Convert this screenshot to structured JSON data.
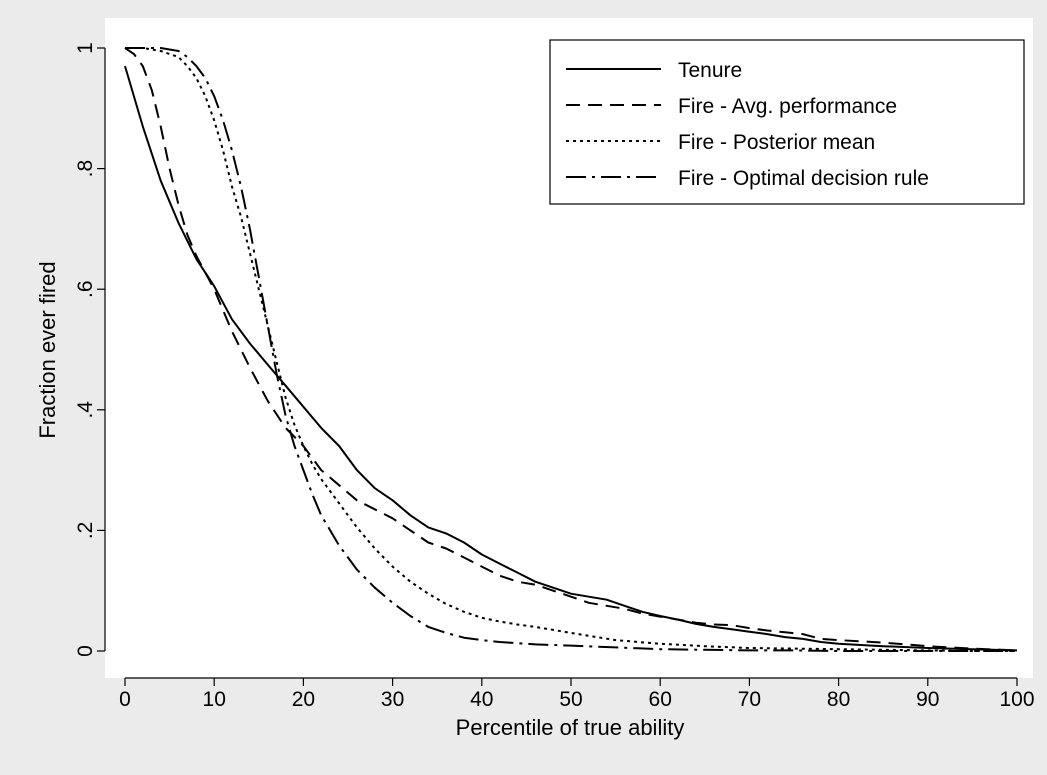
{
  "chart_data": {
    "type": "line",
    "title": "",
    "xlabel": "Percentile of true ability",
    "ylabel": "Fraction ever fired",
    "xlim": [
      0,
      100
    ],
    "ylim": [
      0,
      1
    ],
    "xticks": [
      0,
      10,
      20,
      30,
      40,
      50,
      60,
      70,
      80,
      90,
      100
    ],
    "xtick_labels": [
      "0",
      "10",
      "20",
      "30",
      "40",
      "50",
      "60",
      "70",
      "80",
      "90",
      "100"
    ],
    "yticks": [
      0,
      0.2,
      0.4,
      0.6,
      0.8,
      1
    ],
    "ytick_labels": [
      "0",
      ".2",
      ".4",
      ".6",
      ".8",
      "1"
    ],
    "grid": false,
    "legend_position": "top-right",
    "colors": {
      "page_background": "#ebebeb",
      "plot_background": "#ffffff",
      "line": "#000000"
    },
    "series": [
      {
        "name": "Tenure",
        "line_style": "solid",
        "x": [
          0,
          2,
          4,
          6,
          8,
          10,
          12,
          14,
          16,
          18,
          20,
          22,
          24,
          26,
          28,
          30,
          32,
          34,
          36,
          38,
          40,
          42,
          44,
          46,
          48,
          50,
          52,
          54,
          56,
          58,
          60,
          62,
          64,
          66,
          68,
          70,
          72,
          74,
          76,
          78,
          80,
          85,
          90,
          95,
          100
        ],
        "y": [
          0.97,
          0.87,
          0.78,
          0.71,
          0.65,
          0.605,
          0.55,
          0.51,
          0.475,
          0.44,
          0.405,
          0.37,
          0.34,
          0.3,
          0.27,
          0.25,
          0.225,
          0.205,
          0.195,
          0.18,
          0.16,
          0.145,
          0.13,
          0.115,
          0.105,
          0.095,
          0.09,
          0.085,
          0.075,
          0.065,
          0.058,
          0.052,
          0.045,
          0.04,
          0.036,
          0.032,
          0.028,
          0.023,
          0.02,
          0.015,
          0.012,
          0.008,
          0.005,
          0.003,
          0.001
        ]
      },
      {
        "name": "Fire - Avg. performance",
        "line_style": "dashed",
        "x": [
          0,
          1,
          2,
          3,
          4,
          5,
          6,
          7,
          8,
          10,
          12,
          14,
          16,
          18,
          20,
          22,
          24,
          26,
          28,
          30,
          32,
          34,
          36,
          38,
          40,
          42,
          44,
          46,
          48,
          50,
          52,
          54,
          56,
          58,
          60,
          62,
          64,
          66,
          68,
          70,
          72,
          74,
          76,
          78,
          80,
          85,
          90,
          95,
          100
        ],
        "y": [
          1.0,
          0.99,
          0.97,
          0.93,
          0.87,
          0.8,
          0.74,
          0.69,
          0.655,
          0.6,
          0.53,
          0.47,
          0.415,
          0.37,
          0.34,
          0.3,
          0.275,
          0.25,
          0.235,
          0.22,
          0.2,
          0.18,
          0.17,
          0.155,
          0.14,
          0.125,
          0.115,
          0.11,
          0.1,
          0.09,
          0.08,
          0.075,
          0.07,
          0.062,
          0.057,
          0.052,
          0.047,
          0.044,
          0.043,
          0.038,
          0.034,
          0.031,
          0.028,
          0.02,
          0.018,
          0.014,
          0.008,
          0.004,
          0.001
        ]
      },
      {
        "name": "Fire - Posterior mean",
        "line_style": "dotted",
        "x": [
          0,
          2,
          4,
          6,
          7,
          8,
          9,
          10,
          11,
          12,
          13,
          14,
          15,
          16,
          17,
          18,
          19,
          20,
          21,
          22,
          24,
          26,
          28,
          30,
          32,
          34,
          36,
          38,
          40,
          42,
          44,
          46,
          48,
          50,
          55,
          60,
          65,
          70,
          75,
          80,
          85,
          90,
          95,
          100
        ],
        "y": [
          1.0,
          1.0,
          0.995,
          0.985,
          0.97,
          0.95,
          0.92,
          0.88,
          0.83,
          0.77,
          0.72,
          0.66,
          0.6,
          0.54,
          0.48,
          0.42,
          0.375,
          0.34,
          0.31,
          0.285,
          0.245,
          0.205,
          0.17,
          0.14,
          0.115,
          0.095,
          0.078,
          0.065,
          0.055,
          0.049,
          0.044,
          0.04,
          0.035,
          0.03,
          0.018,
          0.012,
          0.008,
          0.005,
          0.004,
          0.003,
          0.002,
          0.001,
          0.0,
          0.0
        ]
      },
      {
        "name": "Fire - Optimal decision rule",
        "line_style": "dash-dot",
        "x": [
          0,
          2,
          4,
          6,
          7,
          8,
          9,
          10,
          11,
          12,
          13,
          14,
          15,
          16,
          17,
          18,
          19,
          20,
          21,
          22,
          23,
          24,
          25,
          26,
          28,
          30,
          32,
          34,
          36,
          38,
          40,
          42,
          44,
          46,
          48,
          50,
          55,
          60,
          65,
          70,
          75,
          80,
          85,
          90,
          95,
          100
        ],
        "y": [
          1.0,
          1.0,
          1.0,
          0.995,
          0.985,
          0.97,
          0.95,
          0.92,
          0.88,
          0.83,
          0.77,
          0.7,
          0.62,
          0.54,
          0.46,
          0.39,
          0.34,
          0.3,
          0.26,
          0.225,
          0.2,
          0.175,
          0.155,
          0.135,
          0.105,
          0.08,
          0.058,
          0.04,
          0.03,
          0.022,
          0.018,
          0.015,
          0.013,
          0.011,
          0.01,
          0.009,
          0.006,
          0.003,
          0.002,
          0.001,
          0.001,
          0.0,
          0.0,
          0.0,
          0.0,
          0.0
        ]
      }
    ]
  }
}
